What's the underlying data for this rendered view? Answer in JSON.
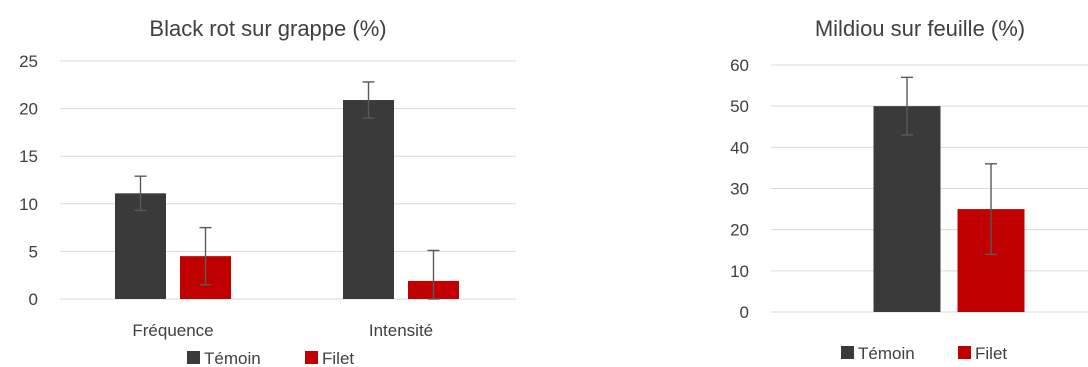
{
  "colors": {
    "temoin": "#3a3a3a",
    "filet": "#c00000"
  },
  "chart_data": [
    {
      "type": "bar",
      "title": "Black rot sur grappe (%)",
      "categories": [
        "Fréquence",
        "Intensité"
      ],
      "yticks": [
        "0",
        "5",
        "10",
        "15",
        "20",
        "25"
      ],
      "ylim": [
        0,
        25
      ],
      "grid": true,
      "legend_position": "bottom",
      "series": [
        {
          "name": "Témoin",
          "color": "#3a3a3a",
          "values": [
            11.1,
            20.9
          ],
          "errors": [
            1.8,
            1.9
          ]
        },
        {
          "name": "Filet",
          "color": "#c00000",
          "values": [
            4.5,
            1.9
          ],
          "errors": [
            3.0,
            3.2
          ]
        }
      ]
    },
    {
      "type": "bar",
      "title": "Mildiou sur feuille (%)",
      "categories": [
        ""
      ],
      "yticks": [
        "0",
        "10",
        "20",
        "30",
        "40",
        "50",
        "60"
      ],
      "ylim": [
        0,
        60
      ],
      "grid": true,
      "legend_position": "bottom",
      "series": [
        {
          "name": "Témoin",
          "color": "#3a3a3a",
          "values": [
            50
          ],
          "errors": [
            7
          ]
        },
        {
          "name": "Filet",
          "color": "#c00000",
          "values": [
            25
          ],
          "errors": [
            11
          ]
        }
      ]
    }
  ]
}
